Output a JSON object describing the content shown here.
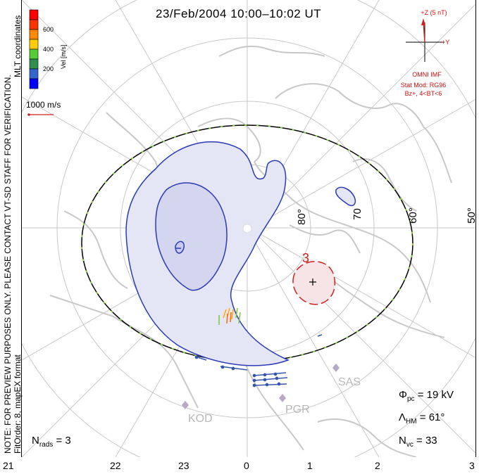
{
  "title": "23/Feb/2004 10:00–10:02 UT",
  "notes": {
    "preview": "NOTE: FOR PREVIEW PURPOSES ONLY. PLEASE CONTACT VT-SD STAFF FOR VERIFICATION.",
    "fit": "FitOrder: 8, mapEX format",
    "coords": "MLT coordinates"
  },
  "colorbar": {
    "title": "Vel [m/s]",
    "ticks": [
      "600",
      "400",
      "200"
    ],
    "colors": [
      "#0000ff",
      "#3366cc",
      "#2f8f4f",
      "#55cc33",
      "#ffcc00",
      "#ff8800",
      "#ff3300",
      "#ff0000"
    ]
  },
  "reference_vector": "1000 m/s",
  "imf": {
    "z_label": "+Z (5 nT)",
    "y_label": "+Y",
    "source": "OMNI IMF",
    "stat_mod": "Stat Mod: RG96",
    "condition": "Bz+, 4<BT<6"
  },
  "latitude_labels": [
    "80°",
    "70",
    "60°",
    "50°"
  ],
  "mlt_labels": [
    "21",
    "22",
    "23",
    "0",
    "1",
    "2",
    "3"
  ],
  "stations": [
    "KOD",
    "PGR",
    "SAS"
  ],
  "contour_label": "3",
  "stats": {
    "nrads_sym": "N",
    "nrads_sub": "rads",
    "nrads_val": "= 3",
    "phi_sym": "Φ",
    "phi_sub": "pc",
    "phi_val": "= 19 kV",
    "lam_sym": "Λ",
    "lam_sub": "HM",
    "lam_val": "= 61°",
    "nvc_sym": "N",
    "nvc_sub": "vc",
    "nvc_val": "= 33"
  },
  "colors": {
    "positive_cell": "#2a3bb5",
    "negative_cell": "#d02020",
    "hm_boundary_dash": "#88cc44"
  }
}
